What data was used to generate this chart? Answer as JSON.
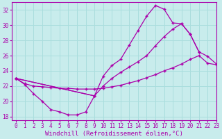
{
  "background_color": "#c8ecec",
  "grid_color": "#aadddd",
  "line_color": "#aa00aa",
  "xlim": [
    -0.5,
    23
  ],
  "ylim": [
    17.5,
    33
  ],
  "yticks": [
    18,
    20,
    22,
    24,
    26,
    28,
    30,
    32
  ],
  "xticks": [
    0,
    1,
    2,
    3,
    4,
    5,
    6,
    7,
    8,
    9,
    10,
    11,
    12,
    13,
    14,
    15,
    16,
    17,
    18,
    19,
    20,
    21,
    22,
    23
  ],
  "xlabel": "Windchill (Refroidissement éolien,°C)",
  "xlabel_fontsize": 6.5,
  "tick_fontsize": 5.5,
  "series": [
    {
      "x": [
        0,
        1,
        2,
        3,
        4,
        5,
        6,
        7,
        8,
        9
      ],
      "y": [
        23.0,
        22.2,
        21.0,
        20.0,
        18.9,
        18.6,
        18.2,
        18.2,
        18.6,
        20.7
      ]
    },
    {
      "x": [
        0,
        9,
        10,
        11,
        12,
        13,
        14,
        15,
        16,
        17,
        18,
        19,
        20,
        21
      ],
      "y": [
        23.0,
        20.7,
        23.3,
        24.7,
        25.5,
        27.4,
        29.3,
        31.2,
        32.6,
        32.1,
        30.3,
        30.2,
        28.8,
        26.5
      ]
    },
    {
      "x": [
        0,
        9,
        10,
        11,
        12,
        13,
        14,
        15,
        16,
        17,
        18,
        19,
        20,
        21,
        22,
        23
      ],
      "y": [
        23.0,
        20.7,
        22.0,
        23.0,
        23.8,
        24.5,
        25.2,
        26.0,
        27.3,
        28.5,
        29.5,
        30.2,
        28.8,
        26.5,
        25.9,
        24.9
      ]
    },
    {
      "x": [
        0,
        1,
        2,
        3,
        4,
        5,
        6,
        7,
        8,
        9,
        10,
        11,
        12,
        13,
        14,
        15,
        16,
        17,
        18,
        19,
        20,
        21,
        22,
        23
      ],
      "y": [
        23.0,
        22.3,
        22.0,
        21.9,
        21.8,
        21.7,
        21.7,
        21.6,
        21.6,
        21.6,
        21.7,
        21.9,
        22.1,
        22.4,
        22.7,
        23.1,
        23.5,
        24.0,
        24.4,
        24.9,
        25.5,
        26.0,
        25.0,
        24.8
      ]
    }
  ]
}
